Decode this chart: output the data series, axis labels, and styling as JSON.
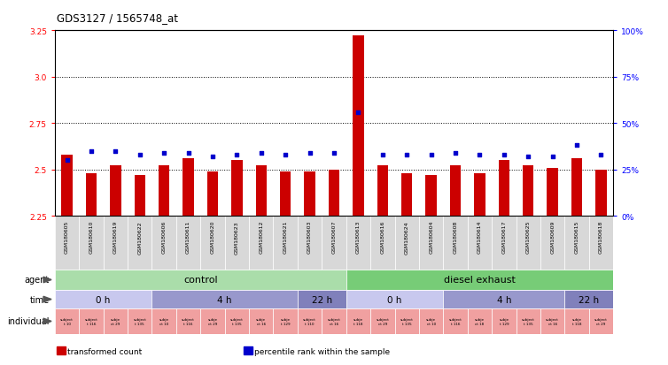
{
  "title": "GDS3127 / 1565748_at",
  "samples": [
    "GSM180605",
    "GSM180610",
    "GSM180619",
    "GSM180622",
    "GSM180606",
    "GSM180611",
    "GSM180620",
    "GSM180623",
    "GSM180612",
    "GSM180621",
    "GSM180603",
    "GSM180607",
    "GSM180613",
    "GSM180616",
    "GSM180624",
    "GSM180604",
    "GSM180608",
    "GSM180614",
    "GSM180617",
    "GSM180625",
    "GSM180609",
    "GSM180615",
    "GSM180618"
  ],
  "bar_values": [
    2.58,
    2.48,
    2.52,
    2.47,
    2.52,
    2.56,
    2.49,
    2.55,
    2.52,
    2.49,
    2.49,
    2.5,
    3.22,
    2.52,
    2.48,
    2.47,
    2.52,
    2.48,
    2.55,
    2.52,
    2.51,
    2.56,
    2.5
  ],
  "dot_values": [
    30,
    35,
    35,
    33,
    34,
    34,
    32,
    33,
    34,
    33,
    34,
    34,
    56,
    33,
    33,
    33,
    34,
    33,
    33,
    32,
    32,
    38,
    33
  ],
  "ylim_left": [
    2.25,
    3.25
  ],
  "ylim_right": [
    0,
    100
  ],
  "yticks_left": [
    2.25,
    2.5,
    2.75,
    3.0,
    3.25
  ],
  "yticks_right": [
    0,
    25,
    50,
    75,
    100
  ],
  "ytick_labels_right": [
    "0%",
    "25%",
    "50%",
    "75%",
    "100%"
  ],
  "bar_color": "#cc0000",
  "dot_color": "#0000cc",
  "bar_bottom": 2.25,
  "agent_groups": [
    {
      "label": "control",
      "start": 0,
      "end": 12,
      "color": "#aaddaa"
    },
    {
      "label": "diesel exhaust",
      "start": 12,
      "end": 23,
      "color": "#77cc77"
    }
  ],
  "time_groups": [
    {
      "label": "0 h",
      "start": 0,
      "end": 4,
      "color": "#c8c8ee"
    },
    {
      "label": "4 h",
      "start": 4,
      "end": 10,
      "color": "#9898cc"
    },
    {
      "label": "22 h",
      "start": 10,
      "end": 12,
      "color": "#8080bb"
    },
    {
      "label": "0 h",
      "start": 12,
      "end": 16,
      "color": "#c8c8ee"
    },
    {
      "label": "4 h",
      "start": 16,
      "end": 21,
      "color": "#9898cc"
    },
    {
      "label": "22 h",
      "start": 21,
      "end": 23,
      "color": "#8080bb"
    }
  ],
  "individual_labels": [
    "subject\nt 10",
    "subject\nt 116",
    "subje\nct 29",
    "subject\nt 135",
    "subje\nct 10",
    "subject\nt 116",
    "subje\nct 29",
    "subject\nt 135",
    "subje\nct 16",
    "subje\nt 129",
    "subject\nt 110",
    "subject\nct 16",
    "subje\nt 118",
    "subject\nct 29",
    "subject\nt 135",
    "subje\nct 10",
    "subject\nt 116",
    "subje\nct 18",
    "subje\nt 129",
    "subject\nt 135",
    "subject\nct 16",
    "subje\nt 118",
    "subject\nct 29"
  ],
  "ind_color": "#f0a0a0",
  "sample_bg": "#d8d8d8",
  "background_color": "#ffffff",
  "legend_items": [
    {
      "color": "#cc0000",
      "label": "transformed count"
    },
    {
      "color": "#0000cc",
      "label": "percentile rank within the sample"
    }
  ],
  "row_label_names": [
    "agent",
    "time",
    "individual"
  ]
}
